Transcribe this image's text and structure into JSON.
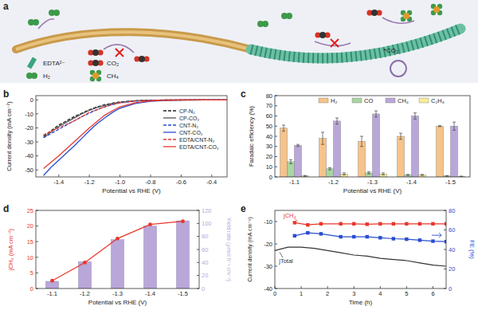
{
  "diagram": {
    "title": "a",
    "legend": [
      {
        "label": "EDTA²⁻"
      },
      {
        "label": "CO₂"
      },
      {
        "label": "H₂"
      },
      {
        "label": "CH₄"
      }
    ],
    "annotation": "*CO₂"
  },
  "chart_data": [
    {
      "type": "line",
      "title": "b",
      "x_label": "Potential vs RHE (V)",
      "y_label": "Current density (mA cm⁻²)",
      "x": [
        -1.5,
        -1.45,
        -1.4,
        -1.35,
        -1.3,
        -1.25,
        -1.2,
        -1.15,
        -1.1,
        -1.05,
        -1.0,
        -0.9,
        -0.8,
        -0.7,
        -0.6,
        -0.5,
        -0.4,
        -0.3
      ],
      "series": [
        {
          "name": "CP-N₂",
          "color": "#222222",
          "line_style": "dashed",
          "values": [
            -26,
            -22,
            -18,
            -15,
            -12,
            -9.5,
            -7,
            -5,
            -3.5,
            -2.4,
            -1.5,
            -0.6,
            -0.2,
            -0.1,
            0,
            0,
            0,
            0
          ]
        },
        {
          "name": "CP-CO₂",
          "color": "#555555",
          "line_style": "solid",
          "values": [
            -27,
            -23,
            -19,
            -16,
            -13,
            -10,
            -7.5,
            -5.5,
            -4,
            -2.7,
            -1.7,
            -0.7,
            -0.3,
            -0.1,
            0,
            0,
            0,
            0
          ]
        },
        {
          "name": "CNT-N₂",
          "color": "#2a4dd0",
          "line_style": "dashed",
          "values": [
            -27,
            -24,
            -21,
            -18,
            -15,
            -12,
            -9.5,
            -7,
            -5,
            -3.4,
            -2.2,
            -0.9,
            -0.4,
            -0.2,
            -0.1,
            0,
            0,
            0
          ]
        },
        {
          "name": "CNT-CO₂",
          "color": "#2a4dd0",
          "line_style": "solid",
          "values": [
            -54,
            -48,
            -43,
            -38,
            -33,
            -27.5,
            -22,
            -17,
            -13,
            -9,
            -6,
            -2.6,
            -1,
            -0.4,
            -0.2,
            -0.1,
            0,
            0
          ]
        },
        {
          "name": "EDTA/CNT-N₂",
          "color": "#e53a30",
          "line_style": "dashed",
          "values": [
            -25,
            -22.5,
            -20,
            -17.5,
            -15,
            -12,
            -9,
            -7,
            -5,
            -3.4,
            -2.1,
            -0.8,
            -0.3,
            -0.1,
            0,
            0,
            0,
            0
          ]
        },
        {
          "name": "EDTA/CNT-CO₂",
          "color": "#e53a30",
          "line_style": "solid",
          "values": [
            -49,
            -44.5,
            -40,
            -35,
            -30,
            -25,
            -20,
            -15.5,
            -11,
            -7.8,
            -5,
            -2,
            -0.8,
            -0.3,
            -0.1,
            0,
            0,
            0
          ]
        }
      ],
      "xlim": [
        -1.55,
        -0.3
      ],
      "xticks": [
        -1.4,
        -1.2,
        {
          "value": -1,
          "label": "-1.0"
        },
        -0.8,
        -0.6,
        -0.4
      ],
      "ylim": [
        -55,
        3
      ],
      "yticks": [
        -50,
        -40,
        -30,
        -20,
        -10,
        0
      ],
      "legend": "right"
    },
    {
      "type": "bar",
      "title": "c",
      "x_label": "Potential vs RHE (V)",
      "y_label": "Faradaic efficiency (%)",
      "categories": [
        "-1.1",
        "-1.2",
        "-1.3",
        "-1.4",
        "-1.5"
      ],
      "series": [
        {
          "name": "H₂",
          "color": "#f6c38a",
          "values": [
            48,
            38,
            35,
            40,
            50
          ],
          "errors": [
            3,
            6,
            5,
            3,
            0.5
          ]
        },
        {
          "name": "CO",
          "color": "#a9d6a2",
          "values": [
            15,
            8,
            4,
            2,
            1
          ],
          "errors": [
            2,
            1,
            1,
            0.5,
            0.3
          ]
        },
        {
          "name": "CH₄",
          "color": "#b9a7da",
          "values": [
            31,
            55,
            62,
            60,
            50
          ],
          "errors": [
            1,
            3,
            3,
            3,
            4
          ]
        },
        {
          "name": "C₂H₄",
          "color": "#f6ee98",
          "values": [
            1,
            3,
            3,
            2,
            0.5
          ],
          "errors": [
            0.5,
            1,
            1,
            0.5,
            0.3
          ]
        }
      ],
      "ylim": [
        0,
        80
      ],
      "yticks": [
        0,
        10,
        20,
        30,
        40,
        50,
        60,
        70,
        80
      ],
      "legend": "top"
    },
    {
      "type": "bar",
      "title": "d",
      "x_label": "Potential vs RHE (V)",
      "y_label": "jCH₄ (mA cm⁻²)",
      "y2_label": "Yield rate (μmol h⁻¹ cm⁻²)",
      "categories": [
        "-1.1",
        "-1.2",
        "-1.3",
        "-1.4",
        "-1.5"
      ],
      "series": [
        {
          "type": "bar",
          "axis": "y2",
          "color": "#b9a7da",
          "values": [
            11,
            41,
            75,
            96,
            104
          ]
        },
        {
          "type": "line",
          "color": "#e8372b",
          "marker": "circle",
          "values": [
            2.5,
            8.3,
            16,
            20.5,
            21.5
          ]
        }
      ],
      "ylim": [
        0,
        25
      ],
      "yticks": [
        0,
        5,
        10,
        15,
        20,
        25
      ],
      "y2lim": [
        0,
        120
      ],
      "y2ticks": [
        0,
        20,
        40,
        60,
        80,
        100,
        120
      ]
    },
    {
      "type": "line",
      "title": "e",
      "x_label": "Time (h)",
      "y_label": "Current density (mA cm⁻²)",
      "y2_label": "FE (%)",
      "series": [
        {
          "name": "jTotal",
          "color": "#333333",
          "x": [
            0,
            0.5,
            1,
            1.5,
            2,
            2.5,
            3,
            3.5,
            4,
            4.5,
            5,
            5.5,
            6,
            6.5
          ],
          "values": [
            -23,
            -21.5,
            -21.5,
            -22,
            -23,
            -24,
            -25,
            -25.5,
            -26.5,
            -27,
            -27.5,
            -28.5,
            -29.5,
            -30
          ]
        },
        {
          "name": "jCH₄",
          "color": "#e8372b",
          "marker": "square",
          "x": [
            0.75,
            1.25,
            1.75,
            2.5,
            3,
            3.5,
            4,
            4.5,
            5,
            5.5,
            6,
            6.5
          ],
          "values": [
            -10.5,
            -11.5,
            -11,
            -11,
            -11,
            -11.2,
            -11,
            -11,
            -11,
            -11,
            -11,
            -11
          ]
        },
        {
          "axis": "y2",
          "color": "#2a4dd0",
          "marker": "square",
          "x": [
            0.75,
            1.25,
            1.75,
            2.5,
            3,
            3.5,
            4,
            4.5,
            5,
            5.5,
            6,
            6.5
          ],
          "values": [
            54,
            57,
            56,
            53,
            53,
            53,
            52,
            51,
            50.5,
            49.5,
            48.5,
            48
          ]
        }
      ],
      "xlim": [
        0,
        6.5
      ],
      "xticks": [
        0,
        1,
        2,
        3,
        4,
        5,
        6
      ],
      "ylim": [
        -40,
        -5
      ],
      "yticks": [
        -40,
        -30,
        -20,
        -10
      ],
      "y2lim": [
        0,
        80
      ],
      "y2ticks": [
        0,
        20,
        40,
        60,
        80
      ]
    }
  ]
}
